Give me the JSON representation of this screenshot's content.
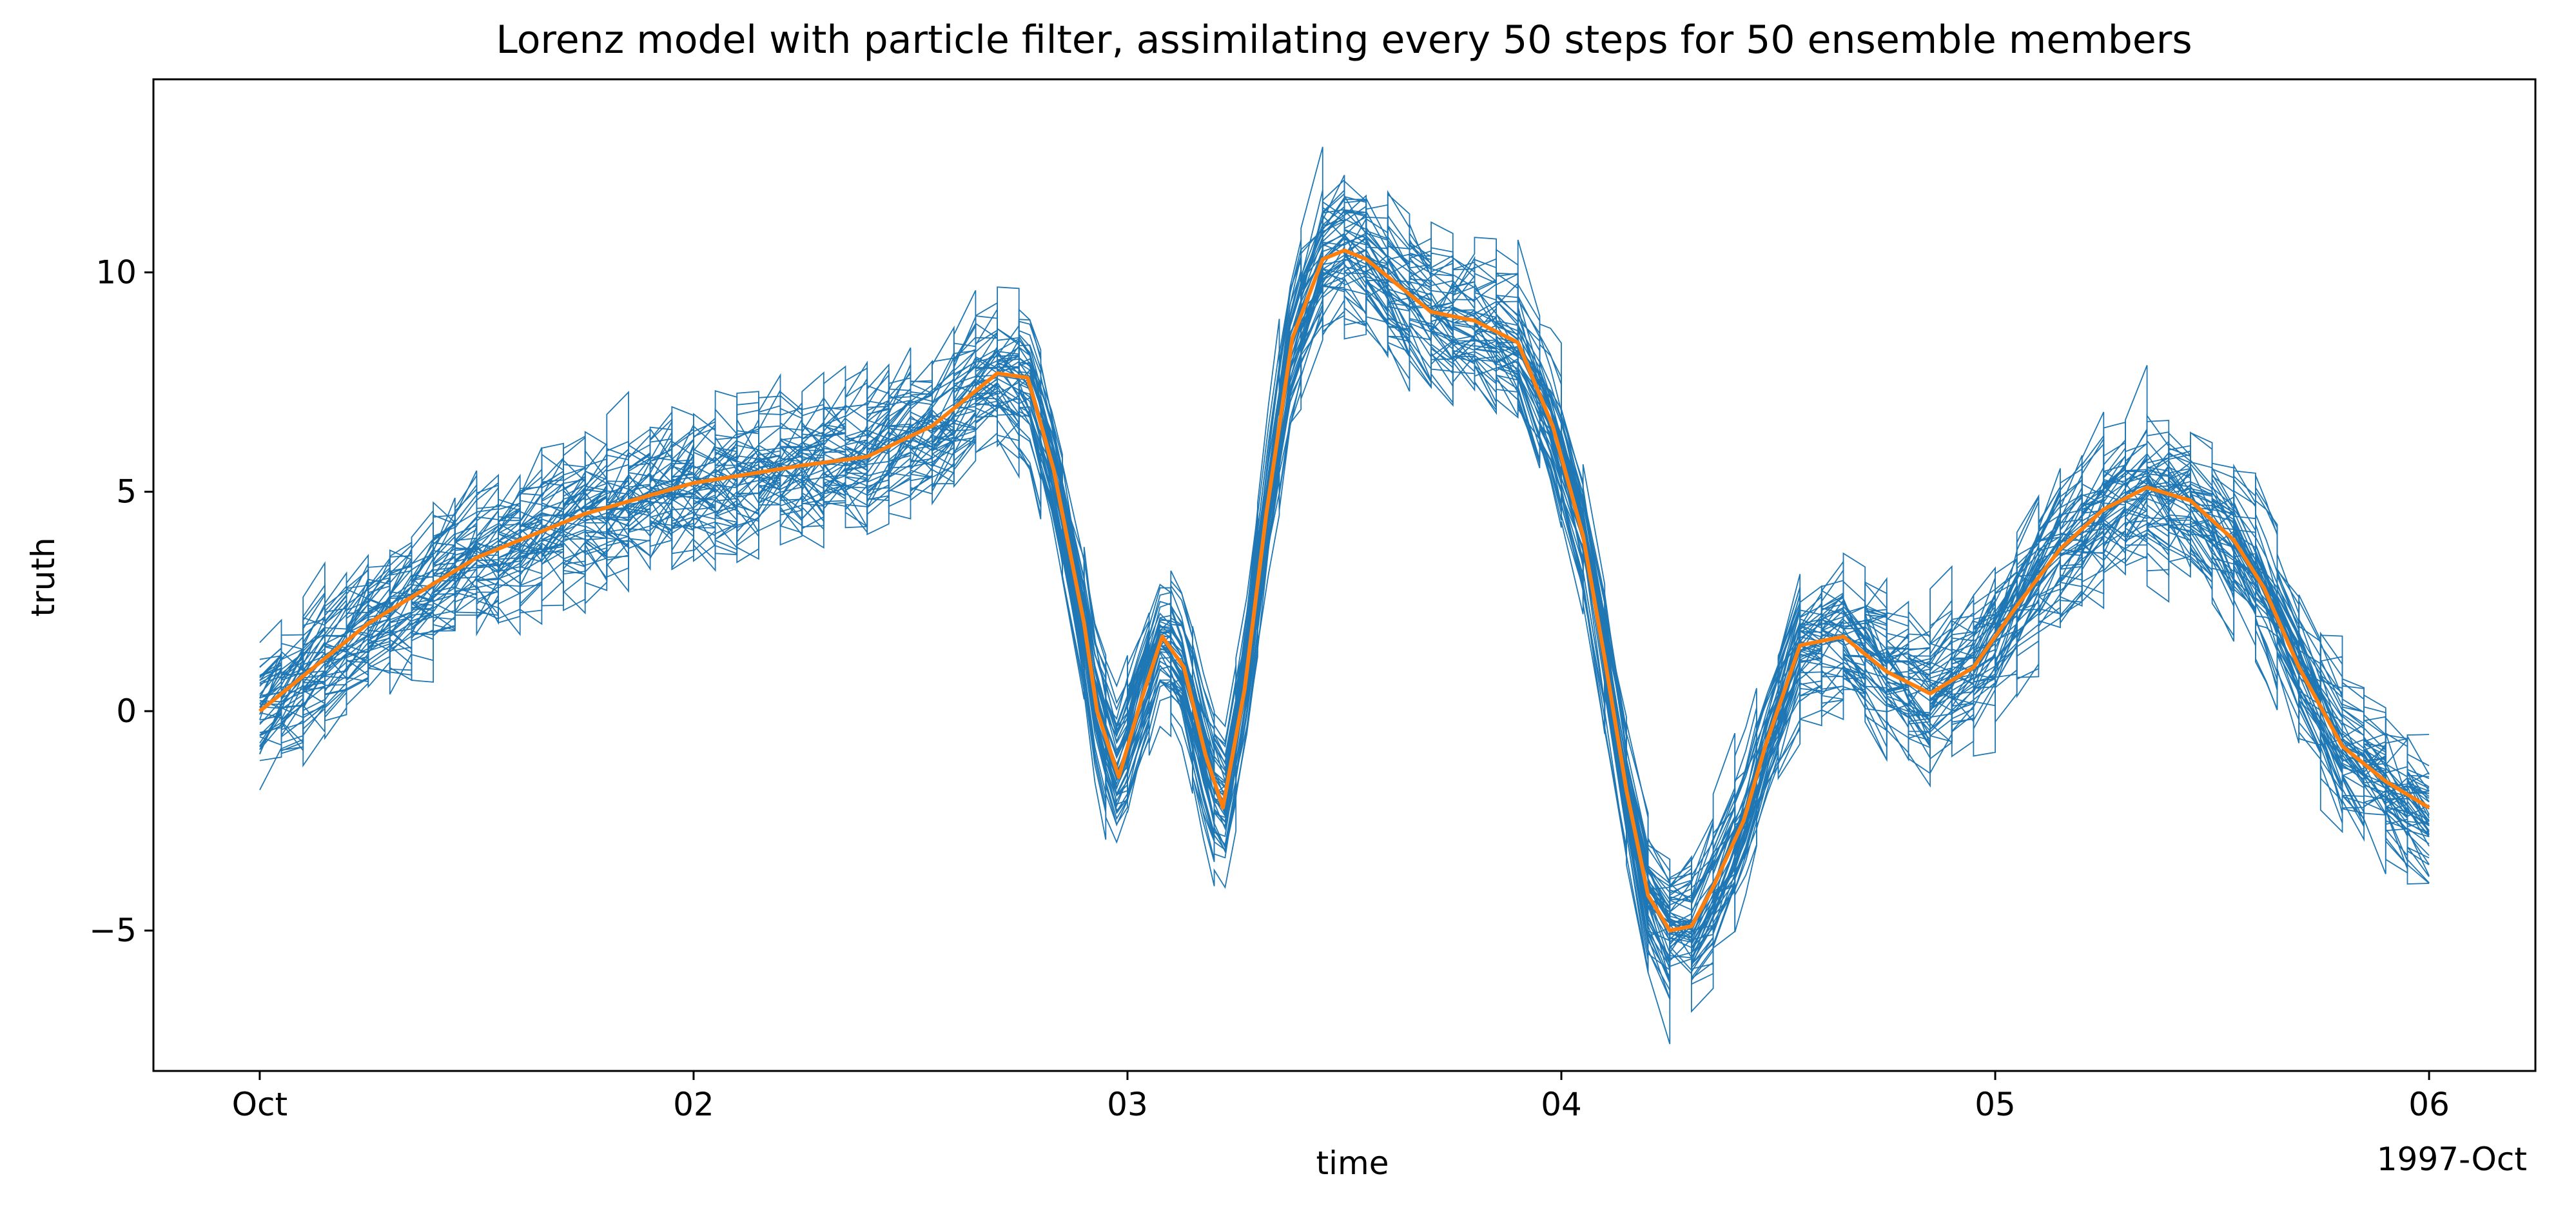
{
  "chart_data": {
    "type": "line",
    "title": "Lorenz model with particle filter, assimilating every 50 steps for 50 ensemble members",
    "xlabel": "time",
    "ylabel": "truth",
    "x_offset_label": "1997-Oct",
    "xlim": [
      -0.245,
      5.245
    ],
    "ylim": [
      -8.2,
      14.4
    ],
    "x_ticks": [
      {
        "value": 0,
        "label": "Oct"
      },
      {
        "value": 1,
        "label": "02"
      },
      {
        "value": 2,
        "label": "03"
      },
      {
        "value": 3,
        "label": "04"
      },
      {
        "value": 4,
        "label": "05"
      },
      {
        "value": 5,
        "label": "06"
      }
    ],
    "y_ticks": [
      {
        "value": -5,
        "label": "−5"
      },
      {
        "value": 0,
        "label": "0"
      },
      {
        "value": 5,
        "label": "5"
      },
      {
        "value": 10,
        "label": "10"
      }
    ],
    "grid": false,
    "legend": "none",
    "x_units": "days since 1997-10-01",
    "series": [
      {
        "role": "truth",
        "color": "#ff7f0e",
        "x": [
          0,
          0.25,
          0.5,
          0.75,
          1.0,
          1.25,
          1.4,
          1.55,
          1.7,
          1.77,
          1.83,
          1.9,
          1.93,
          1.98,
          2.03,
          2.08,
          2.13,
          2.18,
          2.22,
          2.27,
          2.32,
          2.38,
          2.45,
          2.5,
          2.55,
          2.6,
          2.7,
          2.8,
          2.9,
          2.98,
          3.05,
          3.1,
          3.15,
          3.2,
          3.25,
          3.3,
          3.35,
          3.42,
          3.47,
          3.55,
          3.65,
          3.75,
          3.85,
          3.95,
          4.05,
          4.15,
          4.25,
          4.35,
          4.45,
          4.55,
          4.62,
          4.7,
          4.8,
          4.9,
          5.0
        ],
        "y": [
          0,
          2.0,
          3.5,
          4.5,
          5.2,
          5.6,
          5.8,
          6.5,
          7.7,
          7.6,
          5.5,
          2.0,
          0.0,
          -1.5,
          0.2,
          1.7,
          1.0,
          -1.0,
          -2.2,
          0.5,
          4.5,
          8.5,
          10.3,
          10.5,
          10.3,
          9.9,
          9.1,
          8.9,
          8.4,
          6.5,
          4.0,
          1.2,
          -1.8,
          -4.2,
          -5.0,
          -4.9,
          -4.0,
          -2.5,
          -0.8,
          1.5,
          1.7,
          0.9,
          0.4,
          1.0,
          2.4,
          3.7,
          4.6,
          5.1,
          4.8,
          3.9,
          2.8,
          1.0,
          -0.8,
          -1.6,
          -2.2
        ]
      }
    ],
    "ensemble": {
      "members": 50,
      "assimilation_interval_steps": 50,
      "color": "#1f77b4"
    }
  }
}
